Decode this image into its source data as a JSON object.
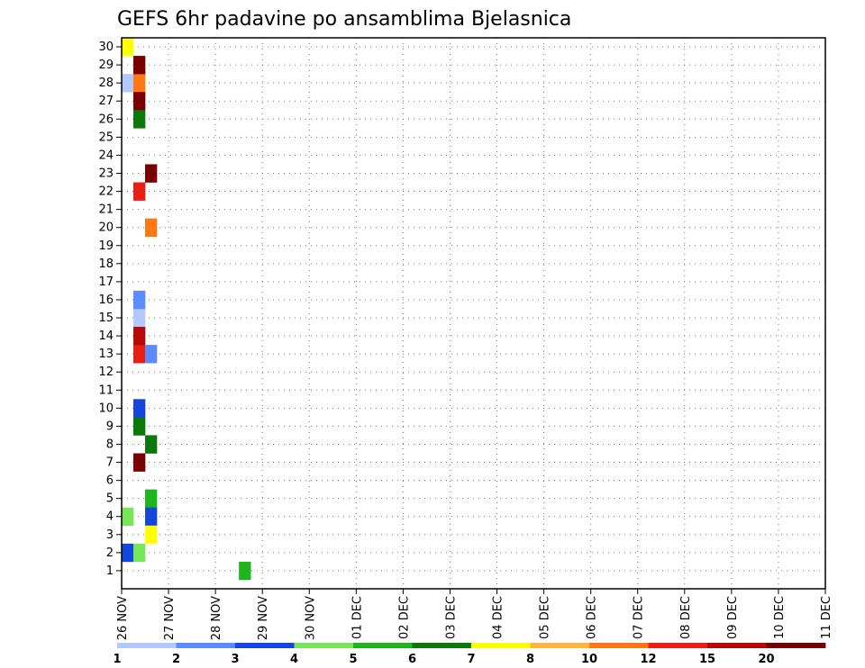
{
  "chart_data": {
    "type": "heatmap",
    "title": "GEFS 6hr padavine po ansamblima Bjelasnica",
    "xlabel": "",
    "ylabel": "",
    "x_tick_labels": [
      "26 NOV",
      "27 NOV",
      "28 NOV",
      "29 NOV",
      "30 NOV",
      "01 DEC",
      "02 DEC",
      "03 DEC",
      "04 DEC",
      "05 DEC",
      "06 DEC",
      "07 DEC",
      "08 DEC",
      "09 DEC",
      "10 DEC",
      "11 DEC"
    ],
    "x_range_days": [
      0,
      15
    ],
    "y_tick_labels": [
      "1",
      "2",
      "3",
      "4",
      "5",
      "6",
      "7",
      "8",
      "9",
      "10",
      "11",
      "12",
      "13",
      "14",
      "15",
      "16",
      "17",
      "18",
      "19",
      "20",
      "21",
      "22",
      "23",
      "24",
      "25",
      "26",
      "27",
      "28",
      "29",
      "30"
    ],
    "time_step_hours": 6,
    "grid": true,
    "legend": {
      "placement": "bottom",
      "labels": [
        "1",
        "2",
        "3",
        "4",
        "5",
        "6",
        "7",
        "8",
        "10",
        "12",
        "15",
        "20"
      ],
      "colors": [
        "#b4c8ff",
        "#5a8cff",
        "#1446dc",
        "#78e65a",
        "#1eb41e",
        "#0a780a",
        "#ffff00",
        "#ffb43c",
        "#ff7814",
        "#e61e14",
        "#b40a0a",
        "#780000"
      ]
    },
    "cells": [
      [
        28,
        0,
        1
      ],
      [
        30,
        0,
        7
      ],
      [
        2,
        0,
        3
      ],
      [
        4,
        0,
        4
      ],
      [
        28,
        1,
        9
      ],
      [
        13,
        1,
        10
      ],
      [
        20,
        2,
        9
      ],
      [
        1,
        10,
        5
      ],
      [
        15,
        1,
        1
      ],
      [
        2,
        1,
        4
      ],
      [
        9,
        1,
        6
      ],
      [
        22,
        1,
        10
      ],
      [
        14,
        1,
        11
      ],
      [
        7,
        1,
        12
      ],
      [
        27,
        1,
        12
      ],
      [
        16,
        1,
        2
      ],
      [
        10,
        1,
        3
      ],
      [
        26,
        1,
        6
      ],
      [
        13,
        2,
        2
      ],
      [
        5,
        2,
        5
      ],
      [
        23,
        2,
        12
      ],
      [
        8,
        2,
        6
      ],
      [
        4,
        2,
        3
      ],
      [
        3,
        2,
        7
      ],
      [
        29,
        1,
        12
      ]
    ]
  }
}
